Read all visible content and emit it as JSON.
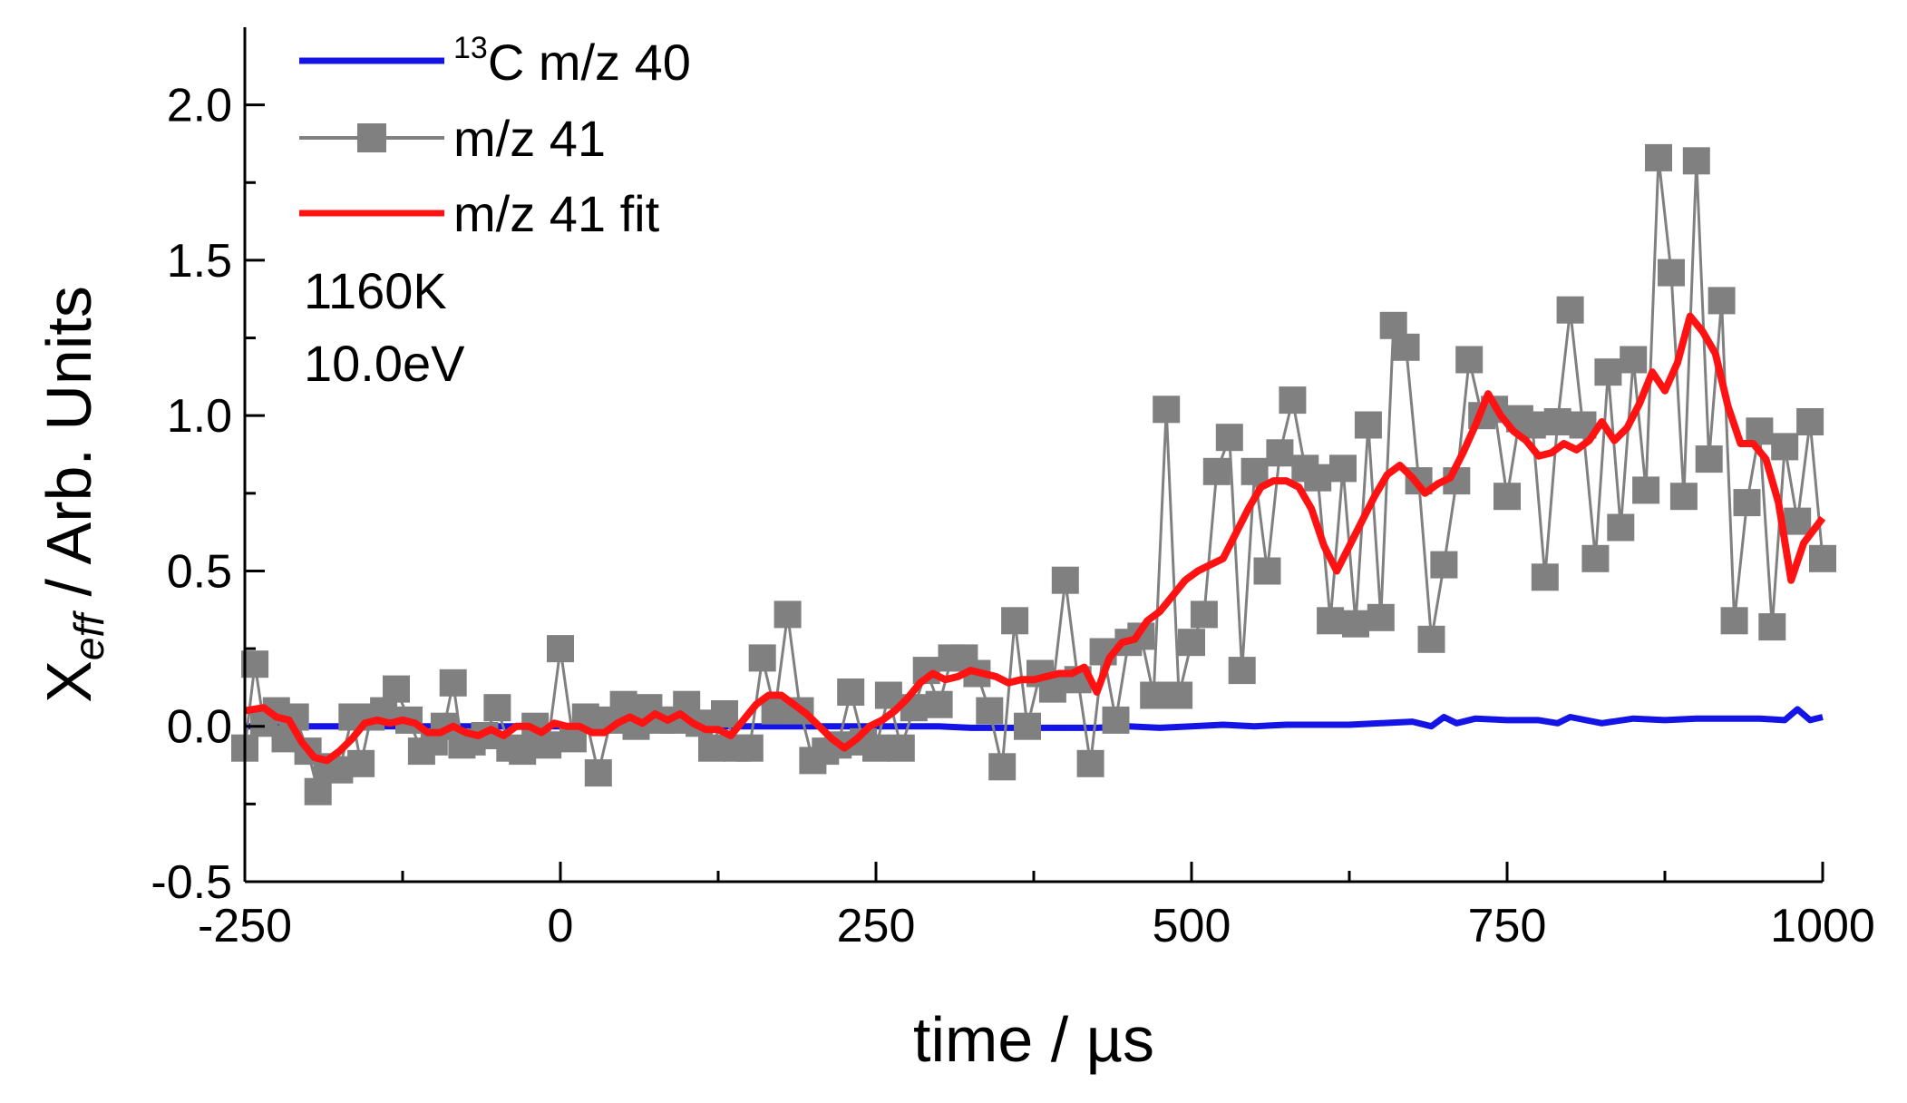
{
  "chart_data": {
    "type": "line",
    "title": "",
    "xlabel": "time / µs",
    "ylabel_main": "X",
    "ylabel_sub": "eff",
    "ylabel_rest": " / Arb. Units",
    "xlim": [
      -250,
      1000
    ],
    "ylim": [
      -0.5,
      2.25
    ],
    "x_ticks": [
      -250,
      0,
      250,
      500,
      750,
      1000
    ],
    "x_tick_labels": [
      "-250",
      "0",
      "250",
      "500",
      "750",
      "1000"
    ],
    "y_ticks": [
      -0.5,
      0.0,
      0.5,
      1.0,
      1.5,
      2.0
    ],
    "y_tick_labels": [
      "-0.5",
      "0.0",
      "0.5",
      "1.0",
      "1.5",
      "2.0"
    ],
    "grid": false,
    "legend_position": "top-left",
    "annotations": [
      "1160K",
      "10.0eV"
    ],
    "series": [
      {
        "name": "13C m/z 40",
        "legend_sup": "13",
        "legend_text": "C m/z 40",
        "color": "#1414e6",
        "marker": "none",
        "x": [
          -250,
          -225,
          -200,
          -175,
          -150,
          -125,
          -100,
          -75,
          -50,
          -25,
          0,
          25,
          50,
          75,
          100,
          125,
          150,
          175,
          200,
          225,
          250,
          275,
          300,
          325,
          350,
          375,
          400,
          425,
          450,
          475,
          500,
          525,
          550,
          575,
          600,
          625,
          650,
          675,
          690,
          700,
          710,
          725,
          750,
          775,
          790,
          800,
          825,
          850,
          875,
          900,
          925,
          950,
          970,
          980,
          990,
          1000
        ],
        "values": [
          0.0,
          0.0,
          0.0,
          0.0,
          0.0,
          0.0,
          0.0,
          0.0,
          0.0,
          0.0,
          0.0,
          0.0,
          0.0,
          0.0,
          0.0,
          0.0,
          0.0,
          0.0,
          0.0,
          0.0,
          0.0,
          0.0,
          0.0,
          -0.005,
          -0.005,
          -0.005,
          -0.005,
          -0.005,
          0.0,
          -0.005,
          0.0,
          0.005,
          0.0,
          0.005,
          0.005,
          0.005,
          0.01,
          0.015,
          0.0,
          0.03,
          0.01,
          0.025,
          0.02,
          0.02,
          0.01,
          0.03,
          0.01,
          0.025,
          0.02,
          0.025,
          0.025,
          0.025,
          0.02,
          0.055,
          0.02,
          0.03
        ]
      },
      {
        "name": "m/z 41",
        "color": "#808080",
        "marker": "square",
        "x": [
          -250,
          -242,
          -235,
          -225,
          -218,
          -210,
          -200,
          -192,
          -185,
          -175,
          -165,
          -158,
          -150,
          -140,
          -130,
          -120,
          -110,
          -100,
          -92,
          -85,
          -78,
          -70,
          -60,
          -50,
          -40,
          -30,
          -20,
          -10,
          0,
          10,
          20,
          30,
          40,
          50,
          60,
          70,
          80,
          90,
          100,
          110,
          120,
          130,
          140,
          150,
          160,
          170,
          180,
          190,
          200,
          210,
          220,
          230,
          240,
          250,
          260,
          270,
          280,
          290,
          300,
          310,
          320,
          330,
          340,
          350,
          360,
          370,
          380,
          390,
          400,
          410,
          420,
          430,
          440,
          450,
          460,
          470,
          480,
          490,
          500,
          510,
          520,
          530,
          540,
          550,
          560,
          570,
          580,
          590,
          600,
          610,
          620,
          630,
          640,
          650,
          660,
          670,
          680,
          690,
          700,
          710,
          720,
          730,
          740,
          750,
          760,
          770,
          780,
          790,
          800,
          810,
          820,
          830,
          840,
          850,
          860,
          870,
          880,
          890,
          900,
          910,
          920,
          930,
          940,
          950,
          960,
          970,
          980,
          990,
          1000
        ],
        "values": [
          -0.07,
          0.2,
          0.01,
          0.05,
          -0.04,
          0.03,
          -0.08,
          -0.21,
          -0.13,
          -0.14,
          0.03,
          -0.12,
          0.03,
          0.05,
          0.12,
          0.02,
          -0.08,
          -0.05,
          0.0,
          0.14,
          -0.06,
          -0.05,
          -0.03,
          0.06,
          -0.07,
          -0.08,
          0.0,
          -0.06,
          0.25,
          -0.04,
          0.03,
          -0.15,
          0.02,
          0.07,
          0.0,
          0.06,
          0.02,
          0.02,
          0.07,
          0.01,
          -0.07,
          0.04,
          -0.07,
          -0.07,
          0.22,
          0.05,
          0.36,
          0.05,
          -0.11,
          -0.08,
          -0.06,
          0.11,
          -0.05,
          -0.07,
          0.1,
          -0.07,
          0.06,
          0.18,
          0.07,
          0.22,
          0.22,
          0.17,
          0.05,
          -0.13,
          0.34,
          0.0,
          0.17,
          0.12,
          0.47,
          0.15,
          -0.12,
          0.24,
          0.02,
          0.27,
          0.29,
          0.1,
          1.02,
          0.1,
          0.27,
          0.36,
          0.82,
          0.93,
          0.18,
          0.82,
          0.5,
          0.88,
          1.05,
          0.83,
          0.8,
          0.34,
          0.83,
          0.33,
          0.97,
          0.35,
          1.29,
          1.22,
          0.79,
          0.28,
          0.52,
          0.79,
          1.18,
          1.0,
          1.02,
          0.74,
          0.99,
          0.97,
          0.48,
          0.98,
          1.34,
          0.97,
          0.54,
          1.14,
          0.64,
          1.18,
          0.76,
          1.83,
          1.46,
          0.74,
          1.82,
          0.86,
          1.37,
          0.34,
          0.72,
          0.95,
          0.32,
          0.9,
          0.66,
          0.98,
          0.54
        ]
      },
      {
        "name": "m/z 41 fit",
        "color": "#ff1212",
        "marker": "none",
        "x": [
          -250,
          -235,
          -225,
          -215,
          -205,
          -195,
          -185,
          -175,
          -165,
          -155,
          -145,
          -135,
          -125,
          -115,
          -105,
          -95,
          -85,
          -75,
          -65,
          -55,
          -45,
          -35,
          -25,
          -15,
          -5,
          5,
          15,
          25,
          35,
          45,
          55,
          65,
          75,
          85,
          95,
          105,
          115,
          125,
          135,
          145,
          155,
          165,
          175,
          185,
          195,
          205,
          215,
          225,
          235,
          245,
          255,
          265,
          275,
          285,
          295,
          305,
          315,
          325,
          335,
          345,
          355,
          365,
          375,
          385,
          395,
          405,
          415,
          425,
          435,
          445,
          455,
          465,
          475,
          485,
          495,
          505,
          515,
          525,
          535,
          545,
          555,
          565,
          575,
          585,
          595,
          605,
          615,
          625,
          635,
          645,
          655,
          665,
          675,
          685,
          695,
          705,
          715,
          725,
          735,
          745,
          755,
          765,
          775,
          785,
          795,
          805,
          815,
          825,
          835,
          845,
          855,
          865,
          875,
          885,
          895,
          905,
          915,
          925,
          935,
          945,
          955,
          965,
          975,
          985,
          1000
        ],
        "values": [
          0.05,
          0.06,
          0.03,
          0.02,
          -0.05,
          -0.1,
          -0.11,
          -0.08,
          -0.04,
          0.01,
          0.02,
          0.01,
          0.02,
          0.01,
          -0.02,
          -0.02,
          0.0,
          -0.02,
          -0.03,
          -0.01,
          -0.03,
          0.0,
          0.0,
          -0.02,
          0.01,
          0.0,
          0.0,
          -0.02,
          -0.02,
          0.01,
          0.03,
          0.01,
          0.04,
          0.02,
          0.04,
          0.01,
          -0.01,
          -0.01,
          -0.03,
          0.02,
          0.07,
          0.1,
          0.1,
          0.07,
          0.04,
          0.0,
          -0.04,
          -0.07,
          -0.04,
          0.0,
          0.02,
          0.05,
          0.09,
          0.14,
          0.17,
          0.15,
          0.16,
          0.18,
          0.17,
          0.16,
          0.14,
          0.15,
          0.15,
          0.16,
          0.17,
          0.17,
          0.19,
          0.11,
          0.22,
          0.27,
          0.28,
          0.34,
          0.37,
          0.42,
          0.47,
          0.5,
          0.52,
          0.54,
          0.62,
          0.7,
          0.77,
          0.79,
          0.79,
          0.77,
          0.7,
          0.58,
          0.5,
          0.58,
          0.66,
          0.74,
          0.81,
          0.84,
          0.8,
          0.75,
          0.78,
          0.8,
          0.88,
          0.97,
          1.07,
          1.0,
          0.95,
          0.92,
          0.87,
          0.88,
          0.91,
          0.89,
          0.92,
          0.98,
          0.92,
          0.96,
          1.04,
          1.14,
          1.08,
          1.17,
          1.32,
          1.27,
          1.2,
          1.03,
          0.91,
          0.91,
          0.86,
          0.72,
          0.47,
          0.59,
          0.67
        ]
      }
    ]
  }
}
